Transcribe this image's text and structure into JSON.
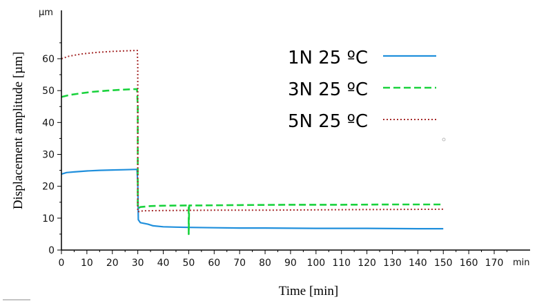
{
  "chart_data": {
    "type": "line",
    "xlabel": "Time [min]",
    "ylabel": "Displacement amplitude [µm]",
    "x_unit": "min",
    "y_unit": "µm",
    "xlim": [
      0,
      180
    ],
    "ylim": [
      0,
      70
    ],
    "x_ticks": [
      "0",
      "10",
      "20",
      "30",
      "40",
      "50",
      "60",
      "70",
      "80",
      "90",
      "100",
      "110",
      "120",
      "130",
      "140",
      "150",
      "160",
      "170"
    ],
    "y_ticks": [
      "0",
      "10",
      "20",
      "30",
      "40",
      "50",
      "60"
    ],
    "legend_position": "top-right",
    "series": [
      {
        "name": "1N 25 ºC",
        "color": "#1f8fdc",
        "style": "solid",
        "points": [
          [
            0,
            23.8
          ],
          [
            2,
            24.3
          ],
          [
            5,
            24.5
          ],
          [
            10,
            24.8
          ],
          [
            15,
            25.0
          ],
          [
            20,
            25.1
          ],
          [
            25,
            25.2
          ],
          [
            29.7,
            25.3
          ],
          [
            30,
            21.0
          ],
          [
            30.2,
            9.5
          ],
          [
            31,
            8.6
          ],
          [
            34,
            8.1
          ],
          [
            36,
            7.6
          ],
          [
            40,
            7.3
          ],
          [
            45,
            7.2
          ],
          [
            50,
            7.1
          ],
          [
            60,
            7.0
          ],
          [
            70,
            6.9
          ],
          [
            80,
            6.9
          ],
          [
            100,
            6.8
          ],
          [
            120,
            6.8
          ],
          [
            140,
            6.7
          ],
          [
            150,
            6.7
          ]
        ]
      },
      {
        "name": "3N 25 ºC",
        "color": "#19d23c",
        "style": "dashed",
        "points": [
          [
            0,
            48.0
          ],
          [
            3,
            48.6
          ],
          [
            8,
            49.2
          ],
          [
            12,
            49.6
          ],
          [
            18,
            50.0
          ],
          [
            24,
            50.3
          ],
          [
            29.7,
            50.5
          ],
          [
            30,
            45.0
          ],
          [
            30,
            13.0
          ],
          [
            31,
            13.5
          ],
          [
            35,
            13.8
          ],
          [
            40,
            13.9
          ],
          [
            49.8,
            14.0
          ],
          [
            50,
            14.0
          ],
          [
            50,
            5.0
          ],
          [
            50.2,
            14.0
          ],
          [
            55,
            14.0
          ],
          [
            70,
            14.1
          ],
          [
            90,
            14.2
          ],
          [
            110,
            14.2
          ],
          [
            130,
            14.3
          ],
          [
            150,
            14.3
          ]
        ]
      },
      {
        "name": "5N 25 ºC",
        "color": "#a52a2a",
        "style": "dotted",
        "points": [
          [
            0,
            60.0
          ],
          [
            3,
            60.8
          ],
          [
            8,
            61.5
          ],
          [
            14,
            62.0
          ],
          [
            20,
            62.3
          ],
          [
            26,
            62.5
          ],
          [
            29.8,
            62.6
          ],
          [
            30,
            58.0
          ],
          [
            30,
            12.0
          ],
          [
            32,
            12.3
          ],
          [
            40,
            12.4
          ],
          [
            60,
            12.5
          ],
          [
            80,
            12.5
          ],
          [
            100,
            12.6
          ],
          [
            120,
            12.7
          ],
          [
            150,
            12.8
          ]
        ]
      }
    ]
  }
}
